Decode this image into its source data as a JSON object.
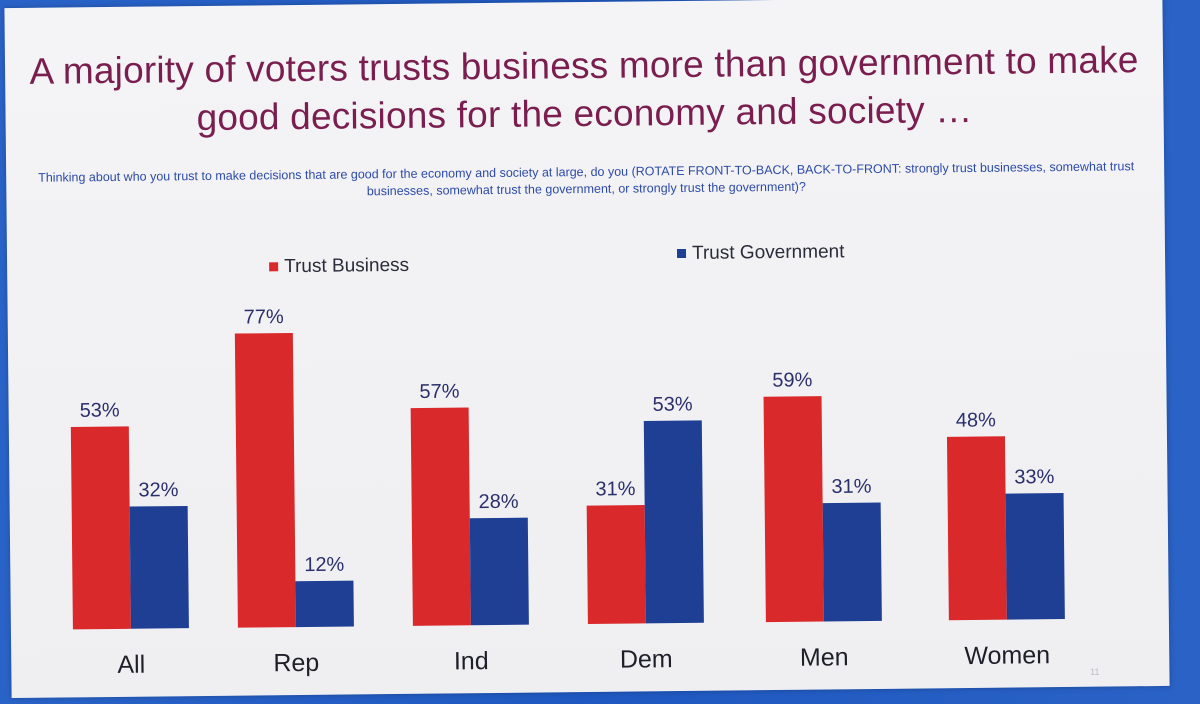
{
  "title": "A majority of voters trusts business more than government to make good decisions for the economy and society …",
  "subtitle": "Thinking about who you trust to make decisions that are good for the economy and society at large, do you (ROTATE FRONT-TO-BACK, BACK-TO-FRONT: strongly trust businesses, somewhat trust businesses, somewhat trust the government, or strongly trust the government)?",
  "page_number": "11",
  "colors": {
    "business": "#d9292b",
    "government": "#1f3f94"
  },
  "chart_data": {
    "type": "bar",
    "title": "A majority of voters trusts business more than government to make good decisions for the economy and society …",
    "categories": [
      "All",
      "Rep",
      "Ind",
      "Dem",
      "Men",
      "Women"
    ],
    "series": [
      {
        "name": "Trust Business",
        "values": [
          53,
          77,
          57,
          31,
          59,
          48
        ],
        "labels": [
          "53%",
          "77%",
          "57%",
          "31%",
          "59%",
          "48%"
        ]
      },
      {
        "name": "Trust Government",
        "values": [
          32,
          12,
          28,
          53,
          31,
          33
        ],
        "labels": [
          "32%",
          "12%",
          "28%",
          "53%",
          "31%",
          "33%"
        ]
      }
    ],
    "ylim": [
      0,
      100
    ],
    "grid": false,
    "legend": "top-center",
    "xlabel": "",
    "ylabel": ""
  }
}
